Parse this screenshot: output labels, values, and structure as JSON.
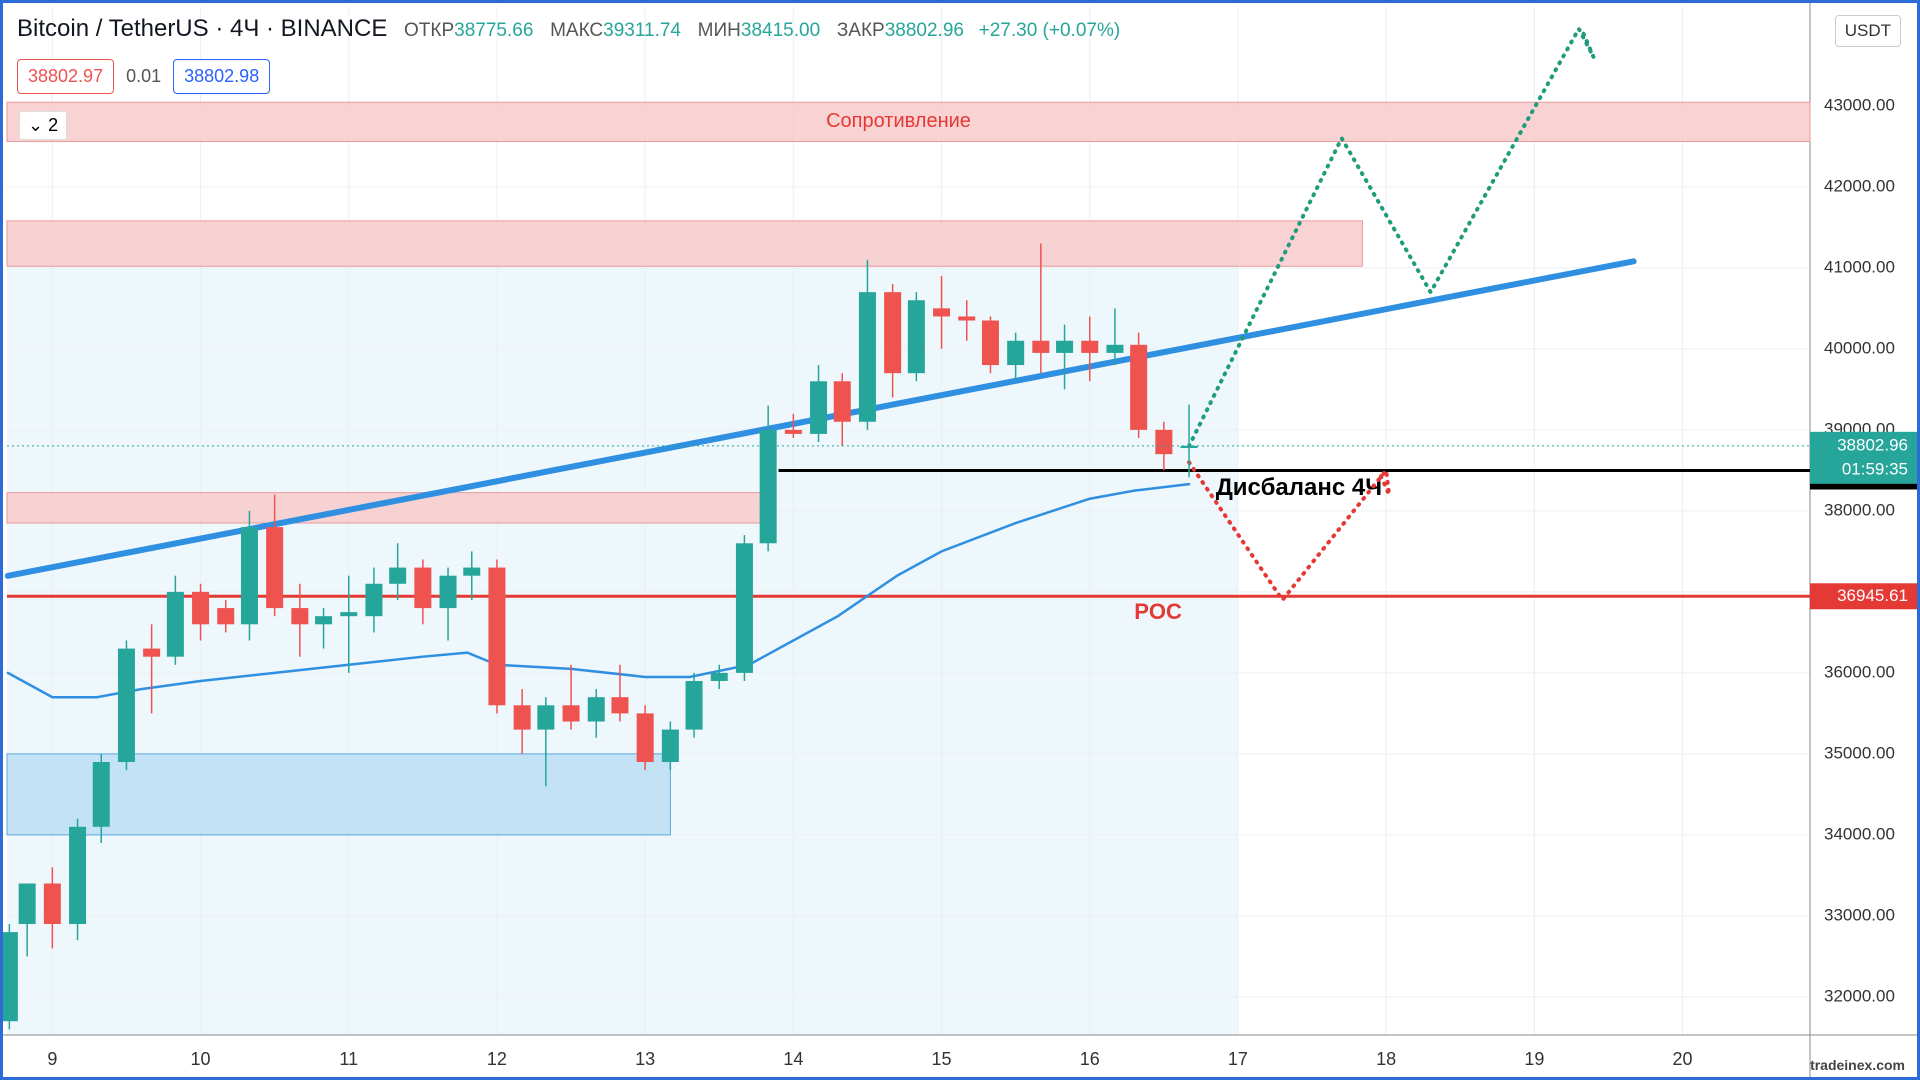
{
  "header": {
    "title": "Bitcoin / TetherUS · 4Ч · BINANCE",
    "ohlc_labels": [
      "ОТКР",
      "МАКС",
      "МИН",
      "ЗАКР"
    ],
    "ohlc_values": [
      "38775.66",
      "39311.74",
      "38415.00",
      "38802.96"
    ],
    "change": "+27.30 (+0.07%)",
    "bid": "38802.97",
    "spread": "0.01",
    "ask": "38802.98",
    "layers": "2",
    "currency": "USDT",
    "watermark": "tradeinex.com"
  },
  "chart_data": {
    "type": "candlestick",
    "x": [
      8.71,
      8.83,
      9.0,
      9.17,
      9.33,
      9.5,
      9.67,
      9.83,
      10.0,
      10.17,
      10.33,
      10.5,
      10.67,
      10.83,
      11.0,
      11.17,
      11.33,
      11.5,
      11.67,
      11.83,
      12.0,
      12.17,
      12.33,
      12.5,
      12.67,
      12.83,
      13.0,
      13.17,
      13.33,
      13.5,
      13.67,
      13.83,
      14.0,
      14.17,
      14.33,
      14.5,
      14.67,
      14.83,
      15.0,
      15.17,
      15.33,
      15.5,
      15.67,
      15.83,
      16.0,
      16.17,
      16.33,
      16.5,
      16.67
    ],
    "open": [
      31700,
      32900,
      33400,
      32900,
      34100,
      34900,
      36300,
      36200,
      37000,
      36800,
      36600,
      37800,
      36800,
      36600,
      36700,
      36700,
      37100,
      37300,
      36800,
      37200,
      37300,
      35600,
      35300,
      35600,
      35400,
      35700,
      35500,
      34900,
      35300,
      35900,
      36000,
      37600,
      39000,
      38950,
      39600,
      39100,
      40700,
      39700,
      40500,
      40400,
      40350,
      39800,
      40100,
      39950,
      40100,
      39950,
      40050,
      39000,
      38775.66
    ],
    "high": [
      32900,
      33400,
      33600,
      34200,
      35000,
      36400,
      36600,
      37200,
      37100,
      36900,
      38000,
      38200,
      37100,
      36800,
      37200,
      37300,
      37600,
      37400,
      37300,
      37500,
      37400,
      35800,
      35700,
      36100,
      35800,
      36100,
      35600,
      35400,
      36000,
      36100,
      37700,
      39300,
      39200,
      39800,
      39700,
      41100,
      40800,
      40700,
      40900,
      40600,
      40400,
      40200,
      41300,
      40300,
      40400,
      40500,
      40200,
      39100,
      39311.74
    ],
    "low": [
      31600,
      32500,
      32600,
      32700,
      33900,
      34800,
      35500,
      36100,
      36400,
      36500,
      36400,
      36700,
      36200,
      36300,
      36000,
      36500,
      36900,
      36600,
      36400,
      36900,
      35500,
      35000,
      34600,
      35300,
      35200,
      35400,
      34800,
      34800,
      35200,
      35800,
      35900,
      37500,
      38900,
      38850,
      38800,
      39000,
      39400,
      39600,
      40000,
      40100,
      39700,
      39600,
      39700,
      39500,
      39600,
      39800,
      38900,
      38500,
      38415
    ],
    "close": [
      32800,
      33400,
      32900,
      34100,
      34900,
      36300,
      36200,
      37000,
      36600,
      36600,
      37800,
      36800,
      36600,
      36700,
      36750,
      37100,
      37300,
      36800,
      37200,
      37300,
      35600,
      35300,
      35600,
      35400,
      35700,
      35500,
      34900,
      35300,
      35900,
      36000,
      37600,
      39000,
      38950,
      39600,
      39100,
      40700,
      39700,
      40600,
      40400,
      40350,
      39800,
      40100,
      39950,
      40100,
      39950,
      40050,
      39000,
      38700,
      38802.96
    ],
    "up_color": "#26a69a",
    "down_color": "#ef5350",
    "xlim": [
      8.694,
      20.86
    ],
    "xticks": [
      9,
      10,
      11,
      12,
      13,
      14,
      15,
      16,
      17,
      18,
      19,
      20
    ],
    "ylim": [
      31530,
      44220
    ],
    "yticks": [
      {
        "value": 32000,
        "label": "32000.00"
      },
      {
        "value": 33000,
        "label": "33000.00"
      },
      {
        "value": 34000,
        "label": "34000.00"
      },
      {
        "value": 35000,
        "label": "35000.00"
      },
      {
        "value": 36000,
        "label": "36000.00"
      },
      {
        "value": 37000,
        "label": "37000.00"
      },
      {
        "value": 38000,
        "label": "38000.00"
      },
      {
        "value": 39000,
        "label": "39000.00"
      },
      {
        "value": 40000,
        "label": "40000.00"
      },
      {
        "value": 41000,
        "label": "41000.00"
      },
      {
        "value": 42000,
        "label": "42000.00"
      },
      {
        "value": 43000,
        "label": "43000.00"
      }
    ],
    "grid": true,
    "zones": [
      {
        "text": "Сопротивление",
        "xlim": [
          8.694,
          20.86
        ],
        "ylim": [
          42560,
          43045
        ],
        "color": "#f8c8c8"
      },
      {
        "xlim": [
          8.694,
          17.84
        ],
        "ylim": [
          41020,
          41580
        ],
        "color": "#f8c8c8"
      },
      {
        "xlim": [
          8.694,
          13.78
        ],
        "ylim": [
          37850,
          38225
        ],
        "color": "#f8c8c8"
      },
      {
        "xlim": [
          8.694,
          13.17
        ],
        "ylim": [
          34000,
          35000
        ],
        "color": "#b9dcf5"
      }
    ],
    "current_price": {
      "value": 38802.96,
      "countdown": "01:59:35",
      "color": "#26a69a"
    },
    "levels": [
      {
        "value": 38498.33,
        "text": "Дисбаланс 4Ч",
        "from": 13.9,
        "color": "#000000"
      },
      {
        "value": 36945.61,
        "text": "POC",
        "from": 8.694,
        "color": "#e53935"
      }
    ],
    "overlays": [
      {
        "x": [
          8.7,
          19.67
        ],
        "values": [
          37198,
          41081
        ],
        "color": "#2f8fe0",
        "width": 6,
        "dash": false
      },
      {
        "x": [
          8.7,
          9.0,
          9.3,
          9.6,
          10.0,
          10.5,
          11.0,
          11.5,
          11.8,
          12.0,
          12.5,
          13.0,
          13.3,
          13.7,
          14.0,
          14.3,
          14.7,
          15.0,
          15.5,
          16.0,
          16.3,
          16.67
        ],
        "values": [
          36000,
          35700,
          35700,
          35800,
          35900,
          36000,
          36100,
          36200,
          36250,
          36100,
          36050,
          35950,
          35950,
          36100,
          36400,
          36700,
          37200,
          37500,
          37850,
          38150,
          38250,
          38330
        ],
        "color": "#2f8fe0",
        "width": 2.5,
        "dash": false
      },
      {
        "x": [
          16.67,
          17.7,
          18.3,
          19.3,
          19.4,
          19.33
        ],
        "values": [
          38800,
          42600,
          40700,
          43950,
          43600,
          43900
        ],
        "color": "#1e9c7c",
        "width": 4,
        "dash": true
      },
      {
        "x": [
          16.67,
          17.3,
          18.0,
          18.02,
          17.96
        ],
        "values": [
          38600,
          36900,
          38500,
          38200,
          38450
        ],
        "color": "#e53935",
        "width": 4,
        "dash": true
      }
    ]
  }
}
